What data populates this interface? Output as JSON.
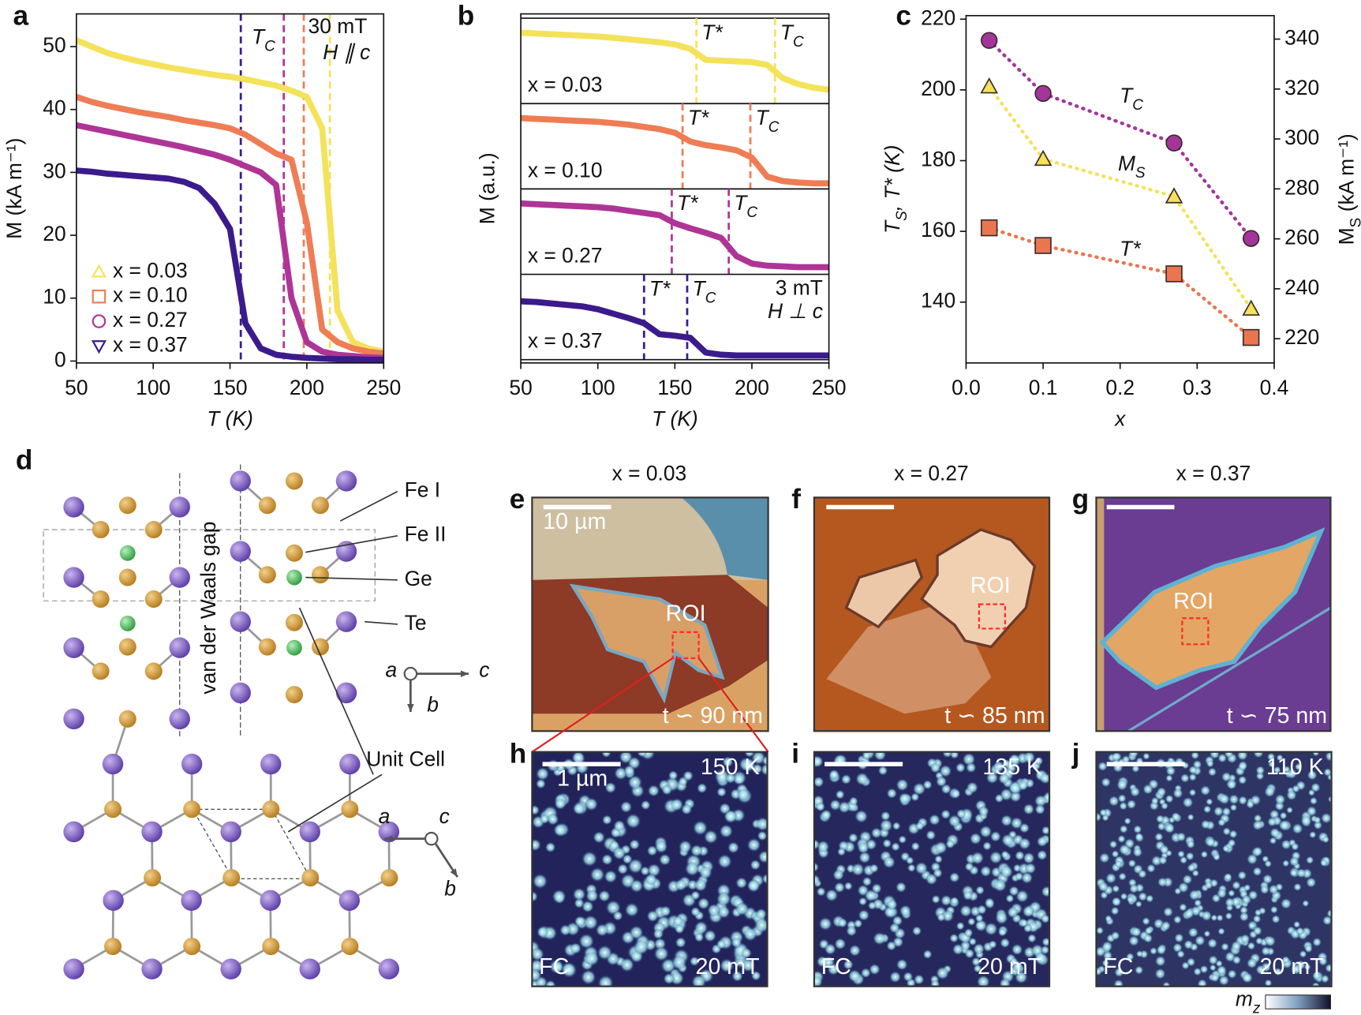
{
  "chart_data": [
    {
      "type": "line",
      "xlim": [
        50,
        250
      ],
      "xticks": [
        50,
        100,
        150,
        200,
        250
      ],
      "ylim": [
        -0.3,
        55.2
      ],
      "yticks": [
        0,
        10,
        20,
        30,
        40,
        50
      ],
      "x_label": "T (K)",
      "y_label": "M (kA m⁻¹)",
      "legend": "lower left",
      "x": [
        50,
        60,
        70,
        80,
        90,
        100,
        110,
        120,
        130,
        140,
        150,
        160,
        170,
        180,
        190,
        200,
        210,
        220,
        230,
        240,
        250
      ],
      "series": [
        {
          "name": "x = 0.03",
          "color": "#f3e25a",
          "marker": "triangle",
          "values": [
            51,
            50,
            49,
            48.3,
            47.7,
            47.2,
            46.7,
            46.3,
            45.9,
            45.5,
            45.2,
            44.8,
            44.3,
            43.8,
            43,
            42,
            37,
            8,
            3,
            2,
            1.5
          ]
        },
        {
          "name": "x = 0.10",
          "color": "#ee7d55",
          "marker": "square",
          "values": [
            42,
            41.2,
            40.6,
            40.1,
            39.6,
            39.2,
            38.8,
            38.3,
            37.9,
            37.5,
            37,
            36,
            34.5,
            33,
            32,
            22,
            5,
            3,
            2,
            1.5,
            1.2
          ]
        },
        {
          "name": "x = 0.27",
          "color": "#ae3596",
          "marker": "circle",
          "values": [
            37.5,
            37,
            36.5,
            36,
            35.5,
            35,
            34.5,
            34,
            33.4,
            32.8,
            32,
            31,
            30,
            28,
            10,
            3,
            1.5,
            1,
            0.8,
            0.6,
            0.5
          ]
        },
        {
          "name": "x = 0.37",
          "color": "#3b1b8c",
          "marker": "triangle-down",
          "values": [
            30.3,
            30.1,
            29.8,
            29.6,
            29.4,
            29.2,
            29,
            28.5,
            27.5,
            25,
            21,
            6,
            2,
            1,
            0.7,
            0.5,
            0.4,
            0.3,
            0.3,
            0.2,
            0.2
          ]
        }
      ],
      "vlines": [
        {
          "x": 157,
          "color": "#3b1b8c"
        },
        {
          "x": 185,
          "color": "#ae3596"
        },
        {
          "x": 198,
          "color": "#ee7d55"
        },
        {
          "x": 215,
          "color": "#f3e25a"
        }
      ],
      "annotations": [
        [
          "T",
          {
            "sub": "C"
          }
        ],
        "30 mT",
        "H ∥ c"
      ]
    },
    {
      "type": "stacked-line",
      "xlim": [
        50,
        250
      ],
      "xticks": [
        50,
        100,
        150,
        200,
        250
      ],
      "x_label": "T (K)",
      "y_label": "M (a.u.)",
      "x": [
        50,
        60,
        70,
        80,
        90,
        100,
        110,
        120,
        130,
        140,
        150,
        160,
        170,
        180,
        190,
        200,
        210,
        220,
        230,
        240,
        250
      ],
      "marker_labels": {
        "t_star": "T*",
        "t_c": [
          "T",
          {
            "sub": "C"
          }
        ]
      },
      "series": [
        {
          "name": "x = 0.03",
          "color": "#f3e25a",
          "t_star": 164,
          "t_c": 215,
          "values": [
            0.92,
            0.91,
            0.9,
            0.89,
            0.88,
            0.87,
            0.85,
            0.83,
            0.81,
            0.79,
            0.76,
            0.7,
            0.55,
            0.54,
            0.53,
            0.52,
            0.48,
            0.3,
            0.22,
            0.17,
            0.14
          ]
        },
        {
          "name": "x = 0.10",
          "color": "#ee7d55",
          "t_star": 155,
          "t_c": 199,
          "values": [
            0.92,
            0.91,
            0.9,
            0.89,
            0.88,
            0.87,
            0.85,
            0.83,
            0.8,
            0.77,
            0.72,
            0.6,
            0.55,
            0.52,
            0.48,
            0.38,
            0.12,
            0.06,
            0.04,
            0.03,
            0.03
          ]
        },
        {
          "name": "x = 0.27",
          "color": "#ae3596",
          "t_star": 148,
          "t_c": 185,
          "values": [
            0.92,
            0.91,
            0.9,
            0.89,
            0.88,
            0.87,
            0.85,
            0.82,
            0.79,
            0.76,
            0.65,
            0.58,
            0.52,
            0.45,
            0.2,
            0.1,
            0.07,
            0.06,
            0.05,
            0.05,
            0.05
          ]
        },
        {
          "name": "x = 0.37",
          "color": "#3b1b8c",
          "t_star": 130,
          "t_c": 158,
          "values": [
            0.75,
            0.74,
            0.72,
            0.7,
            0.68,
            0.64,
            0.58,
            0.52,
            0.45,
            0.3,
            0.28,
            0.25,
            0.05,
            0.02,
            0.01,
            0.01,
            0.01,
            0.01,
            0.01,
            0.01,
            0.01
          ]
        }
      ],
      "annotations": [
        "3 mT",
        "H ⊥ c"
      ]
    },
    {
      "type": "scatter-line",
      "xlim": [
        0,
        0.4
      ],
      "xticks": [
        {
          "value": 0,
          "label": "0.0"
        },
        0.1,
        0.2,
        0.3,
        0.4
      ],
      "ylim": [
        122.8,
        221
      ],
      "yticks": [
        140,
        160,
        180,
        200,
        220
      ],
      "y2lim": [
        210.3,
        349.4
      ],
      "y2ticks": [
        220,
        240,
        260,
        280,
        300,
        320,
        340
      ],
      "x_label": "x",
      "y_label": [
        "T",
        {
          "sub": "S"
        },
        ", T* (K)"
      ],
      "y2_label": [
        "M",
        {
          "sub": "S"
        },
        " (kA m⁻¹)"
      ],
      "x": [
        0.03,
        0.1,
        0.27,
        0.37
      ],
      "series": [
        {
          "name": [
            "T",
            {
              "sub": "C"
            }
          ],
          "color": "#a4359a",
          "marker": "circle",
          "values": [
            214,
            199,
            185,
            158
          ]
        },
        {
          "name": [
            "M",
            {
              "sub": "S"
            }
          ],
          "color": "#f3e25a",
          "marker": "triangle",
          "axis": "y2",
          "values": [
            321,
            292,
            277,
            232
          ]
        },
        {
          "name": "T*",
          "color": "#ea7650",
          "marker": "square",
          "values": [
            161,
            156,
            148,
            130
          ]
        }
      ]
    }
  ],
  "panel_labels": [
    "a",
    "b",
    "c",
    "d",
    "e",
    "f",
    "g",
    "h",
    "i",
    "j"
  ],
  "structure": {
    "atoms": [
      "Fe I",
      "Fe II",
      "Ge",
      "Te"
    ],
    "gap_label": "van der Waals gap",
    "unit_cell": "Unit Cell",
    "axes_side": [
      "a",
      "c",
      "b"
    ],
    "axes_top": [
      "a",
      "c",
      "b"
    ]
  },
  "flakes": [
    {
      "title": "x = 0.03",
      "scale_bar": "10 µm",
      "roi": "ROI",
      "thickness": "t ∽ 90 nm"
    },
    {
      "title": "x = 0.27",
      "roi": "ROI",
      "thickness": "t ∽ 85 nm"
    },
    {
      "title": "x = 0.37",
      "roi": "ROI",
      "thickness": "t ∽ 75 nm"
    }
  ],
  "mfm": [
    {
      "temperature": "150 K",
      "scale_bar": "1 µm",
      "mode": "FC",
      "field": "20 mT"
    },
    {
      "temperature": "135 K",
      "mode": "FC",
      "field": "20 mT"
    },
    {
      "temperature": "110 K",
      "mode": "FC",
      "field": "20 mT"
    }
  ],
  "colorbar_label": [
    "m",
    {
      "sub": "z"
    }
  ]
}
